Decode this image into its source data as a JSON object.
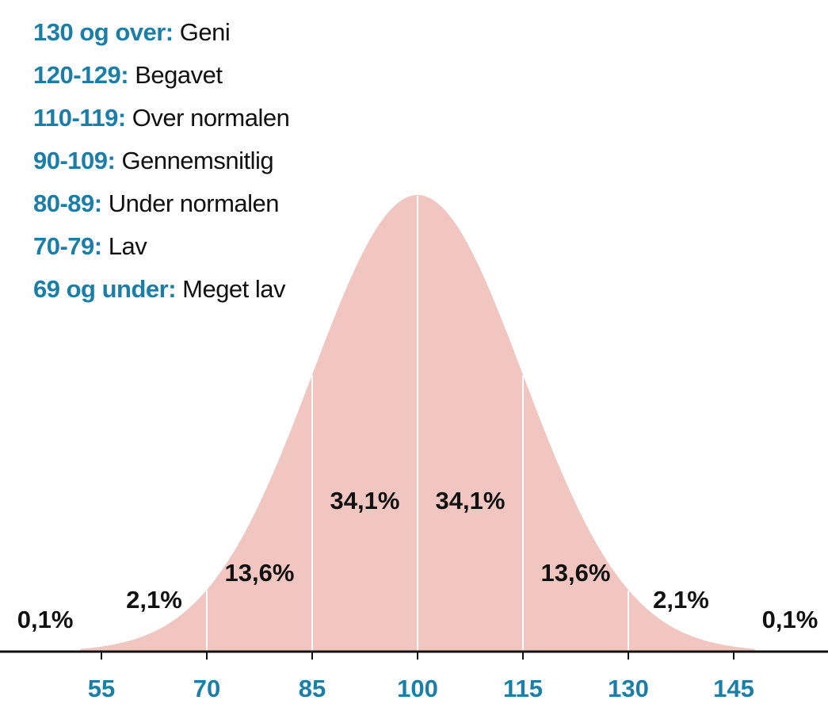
{
  "legend": [
    {
      "range": "130 og over:",
      "label": "Geni"
    },
    {
      "range": "120-129:",
      "label": "Begavet"
    },
    {
      "range": "110-119:",
      "label": "Over normalen"
    },
    {
      "range": "90-109:",
      "label": "Gennemsnitlig"
    },
    {
      "range": "80-89:",
      "label": "Under normalen"
    },
    {
      "range": "70-79:",
      "label": "Lav"
    },
    {
      "range": "69 og under:",
      "label": "Meget lav"
    }
  ],
  "colors": {
    "accent": "#1a7fa8",
    "curve_fill": "#f2c6c0",
    "text": "#111111",
    "axis": "#111111",
    "divider": "#ffffff"
  },
  "chart_data": {
    "type": "area",
    "distribution": "normal",
    "mean": 100,
    "sd": 15,
    "x_ticks": [
      "55",
      "70",
      "85",
      "100",
      "115",
      "130",
      "145"
    ],
    "tick_values": [
      55,
      70,
      85,
      100,
      115,
      130,
      145
    ],
    "xlim": [
      40,
      160
    ],
    "dividers": [
      70,
      85,
      100,
      115,
      130
    ],
    "segments": [
      {
        "label": "0,1%",
        "value": 0.1,
        "x": 47
      },
      {
        "label": "2,1%",
        "value": 2.1,
        "x": 62.5
      },
      {
        "label": "13,6%",
        "value": 13.6,
        "x": 77.5
      },
      {
        "label": "34,1%",
        "value": 34.1,
        "x": 92.5
      },
      {
        "label": "34,1%",
        "value": 34.1,
        "x": 107.5
      },
      {
        "label": "13,6%",
        "value": 13.6,
        "x": 122.5
      },
      {
        "label": "2,1%",
        "value": 2.1,
        "x": 137.5
      },
      {
        "label": "0,1%",
        "value": 0.1,
        "x": 153
      }
    ],
    "title": "",
    "xlabel": "",
    "ylabel": ""
  }
}
